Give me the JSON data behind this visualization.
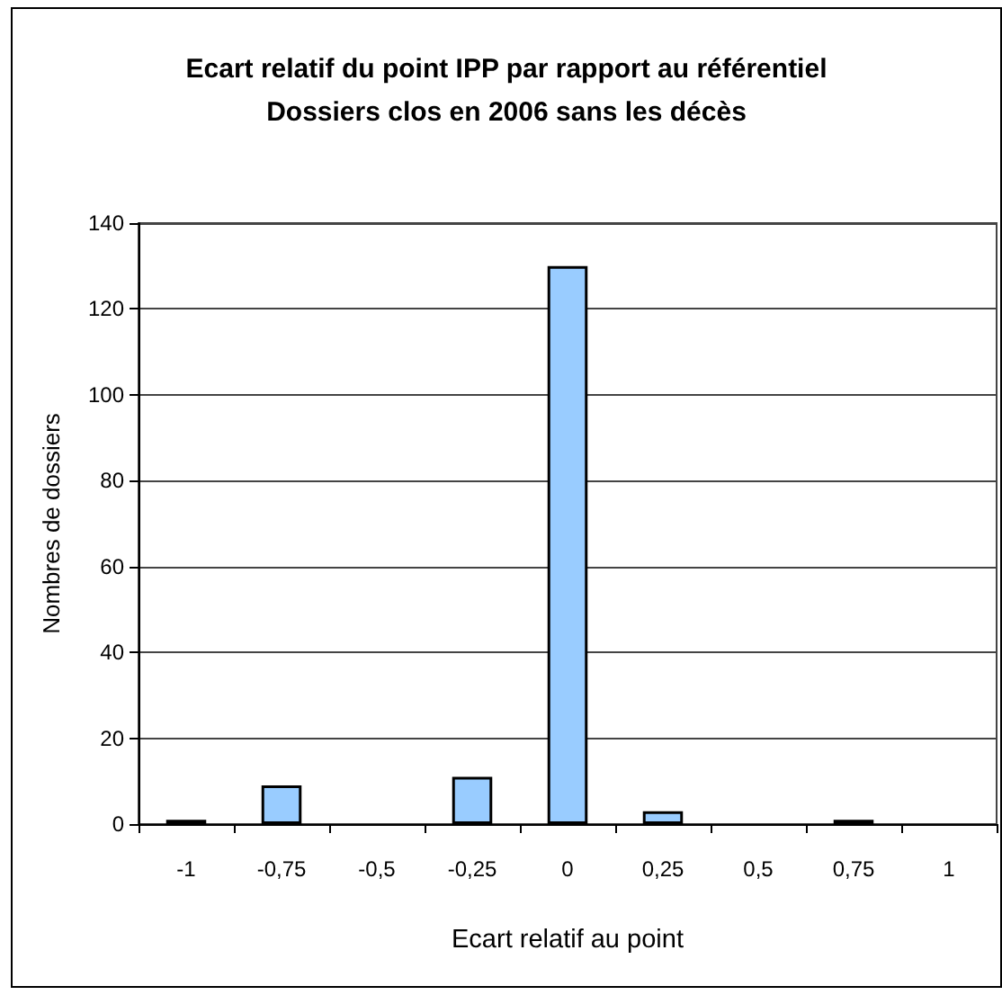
{
  "chart_data": {
    "type": "bar",
    "title": "Ecart relatif du point IPP par rapport au référentiel",
    "subtitle": "Dossiers clos en 2006 sans les décès",
    "xlabel": "Ecart relatif au point",
    "ylabel": "Nombres de dossiers",
    "categories": [
      "-1",
      "-0,75",
      "-0,5",
      "-0,25",
      "0",
      "0,25",
      "0,5",
      "0,75",
      "1"
    ],
    "values": [
      1,
      9,
      0,
      11,
      130,
      3,
      0,
      1,
      0
    ],
    "color": "#99ccff",
    "ylim": [
      0,
      140
    ],
    "yticks": [
      0,
      20,
      40,
      60,
      80,
      100,
      120,
      140
    ],
    "grid": "y"
  }
}
